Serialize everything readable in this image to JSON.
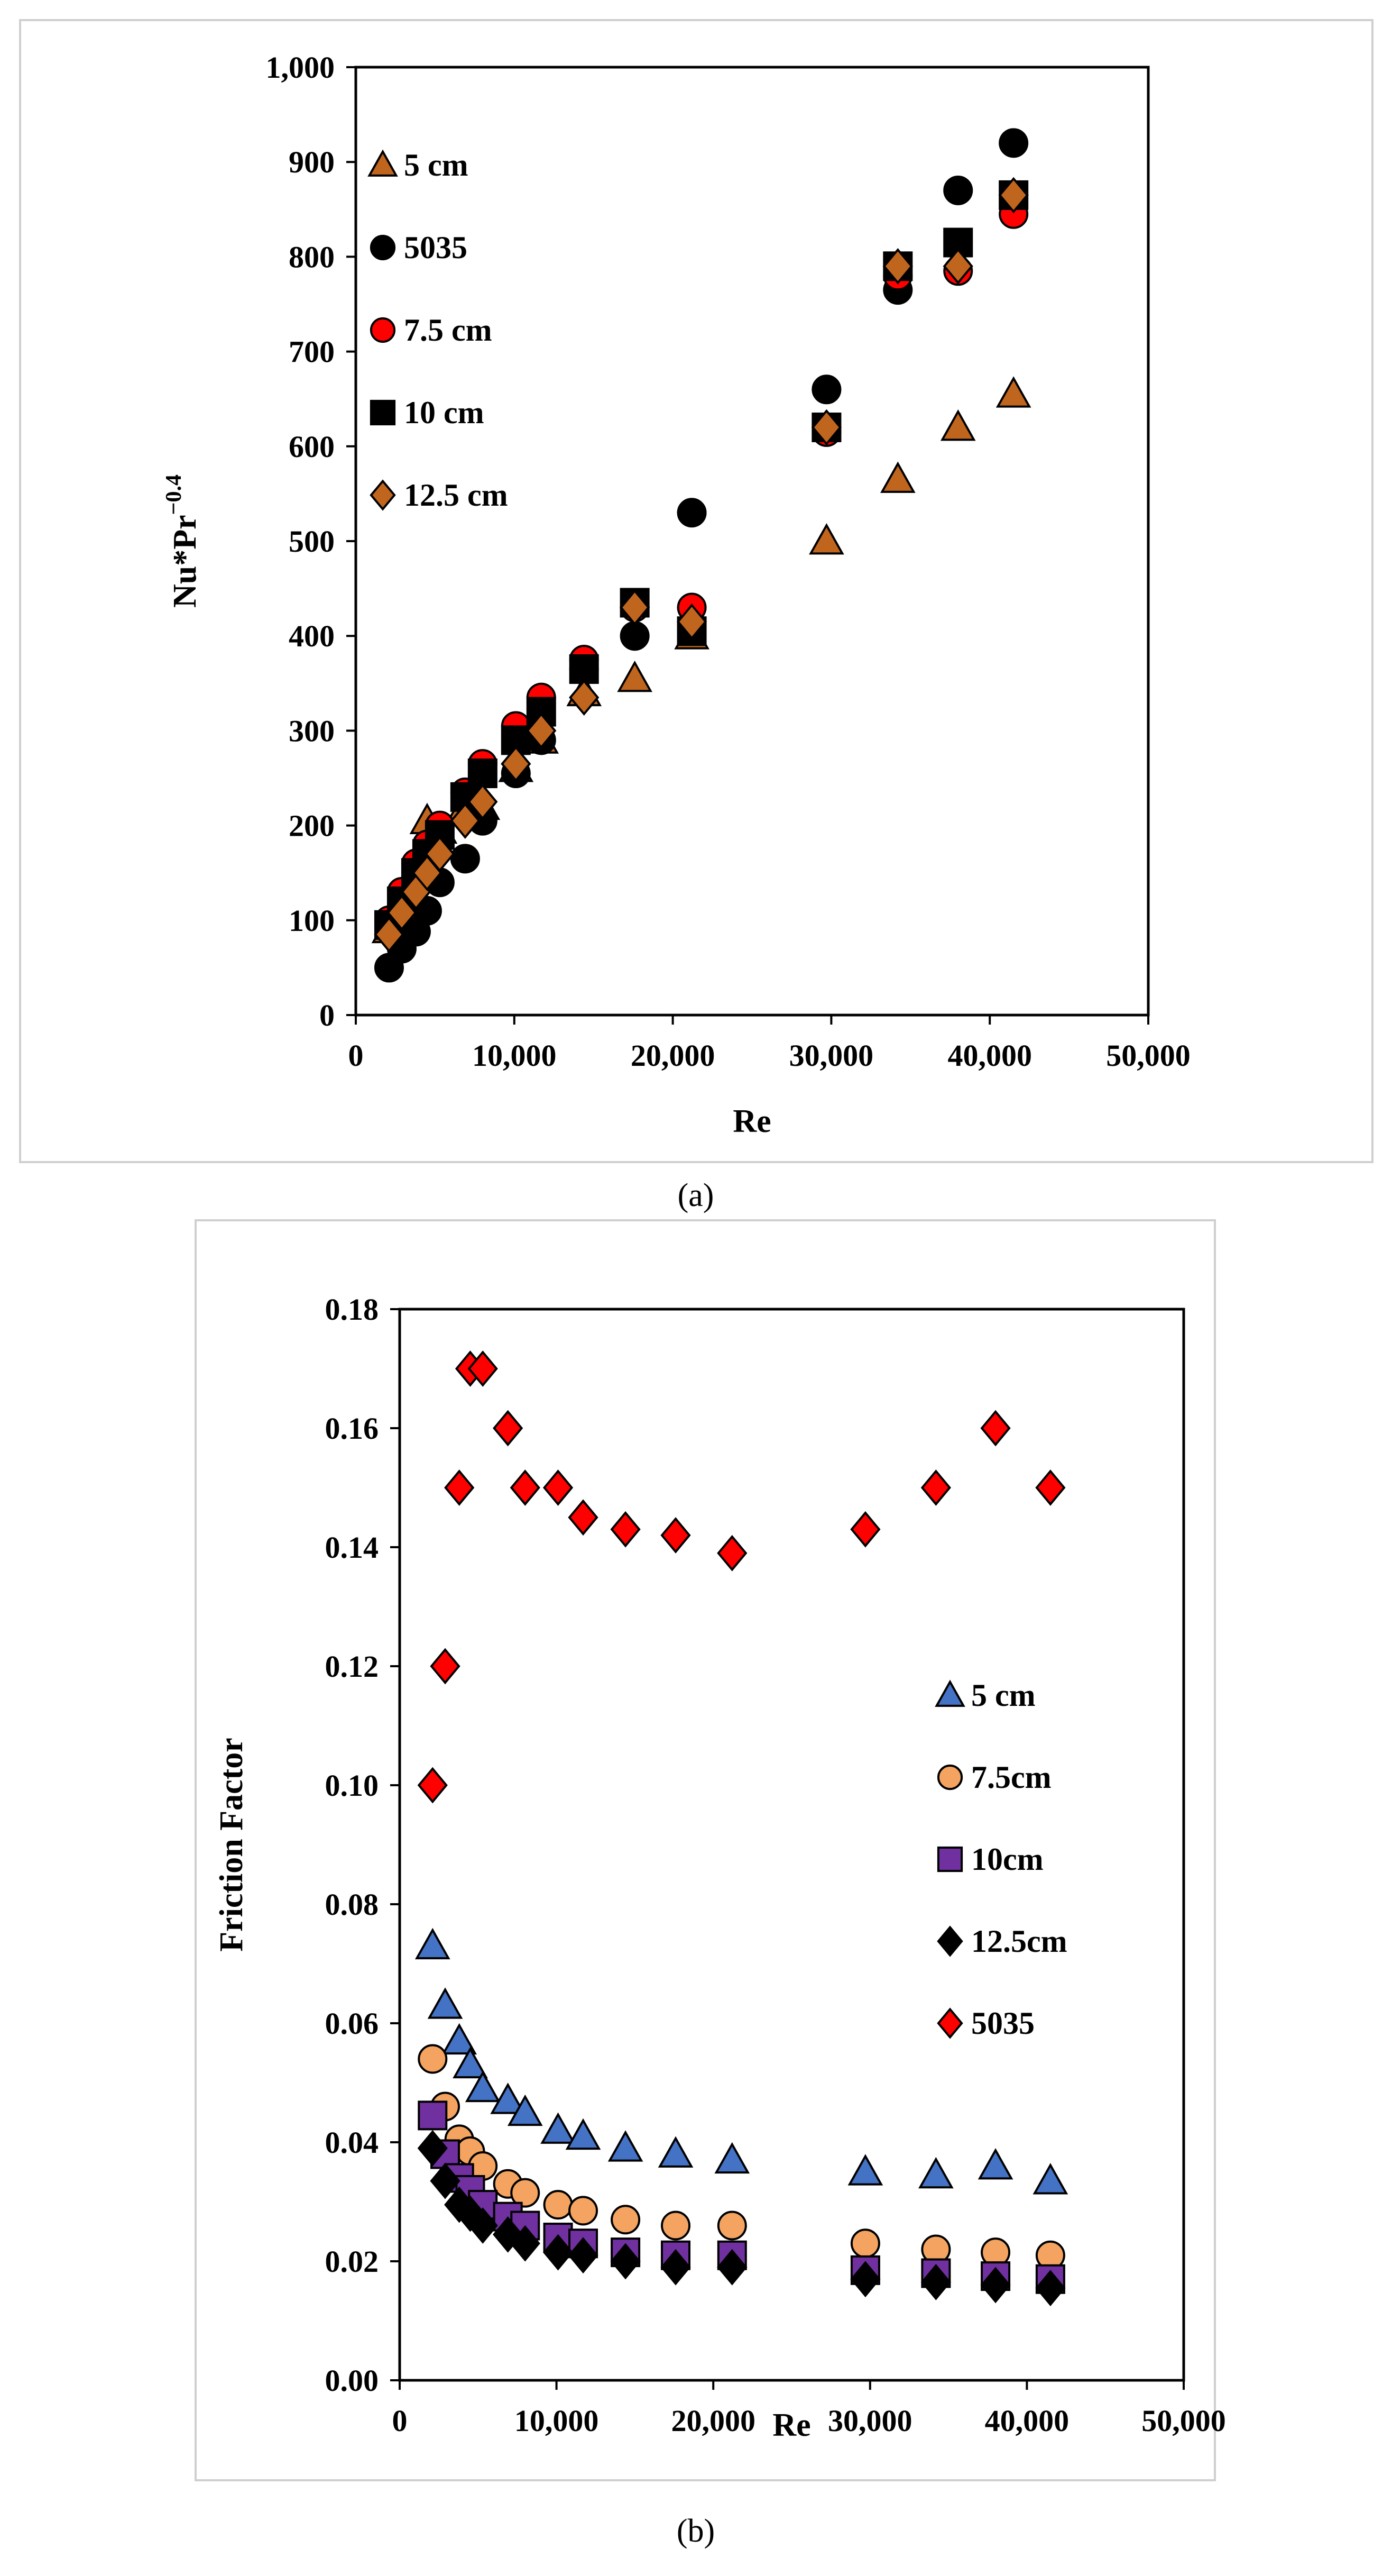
{
  "captions": {
    "a": "(a)",
    "b": "(b)"
  },
  "chart_data": [
    {
      "type": "scatter",
      "id": "a",
      "title": "",
      "xlabel": "Re",
      "ylabel": "Nu*Pr",
      "ylabel_exponent": "−0.4",
      "xlim": [
        0,
        50000
      ],
      "ylim": [
        0,
        1000
      ],
      "xticks": [
        0,
        10000,
        20000,
        30000,
        40000,
        50000
      ],
      "xtick_labels": [
        "0",
        "10,000",
        "20,000",
        "30,000",
        "40,000",
        "50,000"
      ],
      "yticks": [
        0,
        100,
        200,
        300,
        400,
        500,
        600,
        700,
        800,
        900,
        1000
      ],
      "ytick_labels": [
        "0",
        "100",
        "200",
        "300",
        "400",
        "500",
        "600",
        "700",
        "800",
        "900",
        "1,000"
      ],
      "legend_position": "top-left",
      "series": [
        {
          "name": "5 cm",
          "marker": "triangle",
          "color": "#c0651e",
          "x": [
            2100,
            2900,
            3800,
            4500,
            5300,
            6900,
            8000,
            10100,
            11700,
            14400,
            17600,
            21200,
            29700,
            34200,
            38000,
            41500
          ],
          "y": [
            90,
            120,
            155,
            205,
            195,
            220,
            220,
            260,
            290,
            340,
            355,
            400,
            500,
            565,
            620,
            655
          ]
        },
        {
          "name": "5035",
          "marker": "circle",
          "color": "#000000",
          "x": [
            2100,
            2900,
            3800,
            4500,
            5300,
            6900,
            8000,
            10100,
            11700,
            14400,
            17600,
            21200,
            29700,
            34200,
            38000,
            41500
          ],
          "y": [
            50,
            70,
            88,
            110,
            140,
            165,
            205,
            255,
            290,
            365,
            400,
            530,
            660,
            765,
            870,
            920
          ]
        },
        {
          "name": "7.5 cm",
          "marker": "circle",
          "color": "#ff0000",
          "x": [
            2100,
            2900,
            3800,
            4500,
            5300,
            6900,
            8000,
            10100,
            11700,
            14400,
            17600,
            21200,
            29700,
            34200,
            38000,
            41500
          ],
          "y": [
            100,
            130,
            160,
            180,
            200,
            235,
            265,
            305,
            335,
            375,
            430,
            430,
            615,
            780,
            785,
            845
          ]
        },
        {
          "name": "10 cm",
          "marker": "square",
          "color": "#000000",
          "x": [
            2100,
            2900,
            3800,
            4500,
            5300,
            6900,
            8000,
            10100,
            11700,
            14400,
            17600,
            21200,
            29700,
            34200,
            38000,
            41500
          ],
          "y": [
            95,
            120,
            150,
            170,
            190,
            230,
            255,
            290,
            320,
            365,
            435,
            405,
            620,
            790,
            815,
            865
          ]
        },
        {
          "name": "12.5 cm",
          "marker": "diamond",
          "color": "#c0651e",
          "x": [
            2100,
            2900,
            3800,
            4500,
            5300,
            6900,
            8000,
            10100,
            11700,
            14400,
            17600,
            21200,
            29700,
            34200,
            38000,
            41500
          ],
          "y": [
            85,
            108,
            130,
            150,
            170,
            205,
            225,
            265,
            300,
            335,
            430,
            415,
            620,
            790,
            790,
            865
          ]
        }
      ]
    },
    {
      "type": "scatter",
      "id": "b",
      "title": "",
      "xlabel": "Re",
      "ylabel": "Friction Factor",
      "xlim": [
        0,
        50000
      ],
      "ylim": [
        0,
        0.18
      ],
      "xticks": [
        0,
        10000,
        20000,
        30000,
        40000,
        50000
      ],
      "xtick_labels": [
        "0",
        "10,000",
        "20,000",
        "30,000",
        "40,000",
        "50,000"
      ],
      "yticks": [
        0,
        0.02,
        0.04,
        0.06,
        0.08,
        0.1,
        0.12,
        0.14,
        0.16,
        0.18
      ],
      "ytick_labels": [
        "0.00",
        "0.02",
        "0.04",
        "0.06",
        "0.08",
        "0.10",
        "0.12",
        "0.14",
        "0.16",
        "0.18"
      ],
      "legend_position": "middle-right",
      "series": [
        {
          "name": "5 cm",
          "marker": "triangle",
          "color": "#4472c4",
          "x": [
            2100,
            2900,
            3800,
            4500,
            5300,
            6900,
            8000,
            10100,
            11700,
            14400,
            17600,
            21200,
            29700,
            34200,
            38000,
            41500
          ],
          "y": [
            0.073,
            0.063,
            0.057,
            0.053,
            0.049,
            0.047,
            0.045,
            0.042,
            0.041,
            0.039,
            0.038,
            0.037,
            0.035,
            0.0345,
            0.036,
            0.0335
          ]
        },
        {
          "name": "7.5cm",
          "marker": "circle",
          "color": "#f4a460",
          "x": [
            2100,
            2900,
            3800,
            4500,
            5300,
            6900,
            8000,
            10100,
            11700,
            14400,
            17600,
            21200,
            29700,
            34200,
            38000,
            41500
          ],
          "y": [
            0.054,
            0.046,
            0.0405,
            0.0385,
            0.036,
            0.033,
            0.0315,
            0.0295,
            0.0285,
            0.027,
            0.026,
            0.026,
            0.023,
            0.022,
            0.0215,
            0.021
          ]
        },
        {
          "name": "10cm",
          "marker": "square",
          "color": "#7030a0",
          "x": [
            2100,
            2900,
            3800,
            4500,
            5300,
            6900,
            8000,
            10100,
            11700,
            14400,
            17600,
            21200,
            29700,
            34200,
            38000,
            41500
          ],
          "y": [
            0.0445,
            0.038,
            0.034,
            0.032,
            0.0295,
            0.0275,
            0.026,
            0.024,
            0.023,
            0.0215,
            0.021,
            0.021,
            0.0185,
            0.018,
            0.0175,
            0.017
          ]
        },
        {
          "name": "12.5cm",
          "marker": "diamond",
          "color": "#000000",
          "x": [
            2100,
            2900,
            3800,
            4500,
            5300,
            6900,
            8000,
            10100,
            11700,
            14400,
            17600,
            21200,
            29700,
            34200,
            38000,
            41500
          ],
          "y": [
            0.039,
            0.0335,
            0.0295,
            0.028,
            0.026,
            0.0245,
            0.023,
            0.0215,
            0.021,
            0.02,
            0.019,
            0.019,
            0.017,
            0.0165,
            0.016,
            0.0155
          ]
        },
        {
          "name": "5035",
          "marker": "diamond",
          "color": "#ff0000",
          "x": [
            2100,
            2900,
            3800,
            4500,
            5300,
            6900,
            8000,
            10100,
            11700,
            14400,
            17600,
            21200,
            29700,
            34200,
            38000,
            41500
          ],
          "y": [
            0.1,
            0.12,
            0.15,
            0.17,
            0.17,
            0.16,
            0.15,
            0.15,
            0.145,
            0.143,
            0.142,
            0.139,
            0.143,
            0.15,
            0.16,
            0.15
          ]
        }
      ]
    }
  ]
}
